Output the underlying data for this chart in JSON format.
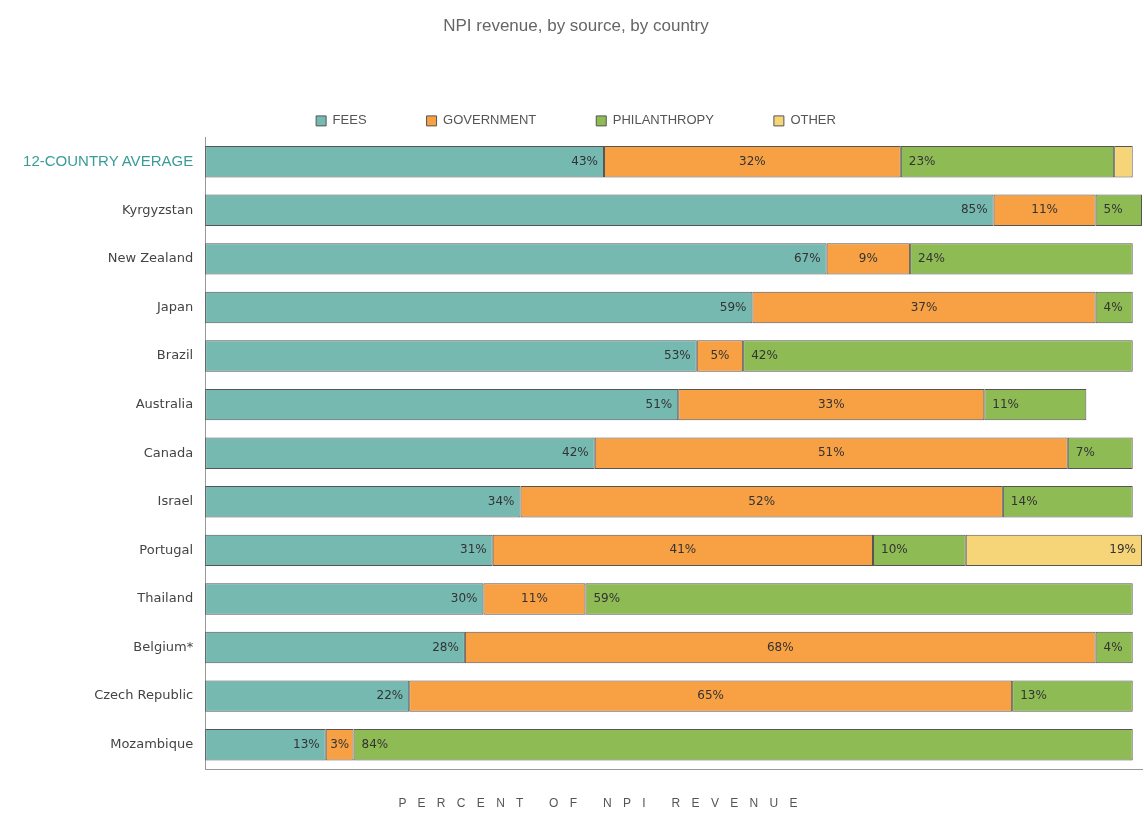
{
  "chart_data": {
    "type": "bar",
    "orientation": "horizontal",
    "stacked": true,
    "title": "NPI revenue, by source, by country",
    "xlabel": "P E R C E N T   O F   N P I   R E V E N U E",
    "legend": "top",
    "grid": false,
    "relative": false,
    "xlim": [
      0,
      101
    ],
    "categories": [
      "12-COUNTRY AVERAGE",
      "Kyrgyzstan",
      "New Zealand",
      "Japan",
      "Brazil",
      "Australia",
      "Canada",
      "Israel",
      "Portugal",
      "Thailand",
      "Belgium*",
      "Czech Republic",
      "Mozambique"
    ],
    "series": [
      {
        "name": "FEES",
        "color": "#76b9b0",
        "values": [
          43,
          85,
          67,
          59,
          53,
          51,
          42,
          34,
          31,
          30,
          28,
          22,
          13
        ],
        "value_labels": [
          "43%",
          "85%",
          "67%",
          "59%",
          "53%",
          "51%",
          "42%",
          "34%",
          "31%",
          "30%",
          "28%",
          "22%",
          "13%"
        ]
      },
      {
        "name": "GOVERNMENT",
        "color": "#f7a044",
        "values": [
          32,
          11,
          9,
          37,
          5,
          33,
          51,
          52,
          41,
          11,
          68,
          65,
          3
        ],
        "value_labels": [
          "32%",
          "11%",
          "9%",
          "37%",
          "5%",
          "33%",
          "51%",
          "52%",
          "41%",
          "11%",
          "68%",
          "65%",
          "3%"
        ]
      },
      {
        "name": "PHILANTHROPY",
        "color": "#8fbb55",
        "values": [
          23,
          5,
          24,
          4,
          42,
          11,
          7,
          14,
          10,
          59,
          4,
          13,
          84
        ],
        "value_labels": [
          "23%",
          "5%",
          "24%",
          "4%",
          "42%",
          "11%",
          "7%",
          "14%",
          "10%",
          "59%",
          "4%",
          "13%",
          "84%"
        ]
      },
      {
        "name": "OTHER",
        "color": "#f6d478",
        "values": [
          2,
          null,
          null,
          null,
          null,
          null,
          null,
          null,
          19,
          null,
          null,
          null,
          null
        ],
        "value_labels": [
          null,
          null,
          null,
          null,
          null,
          null,
          null,
          null,
          "19%",
          null,
          null,
          null,
          null
        ]
      }
    ]
  }
}
